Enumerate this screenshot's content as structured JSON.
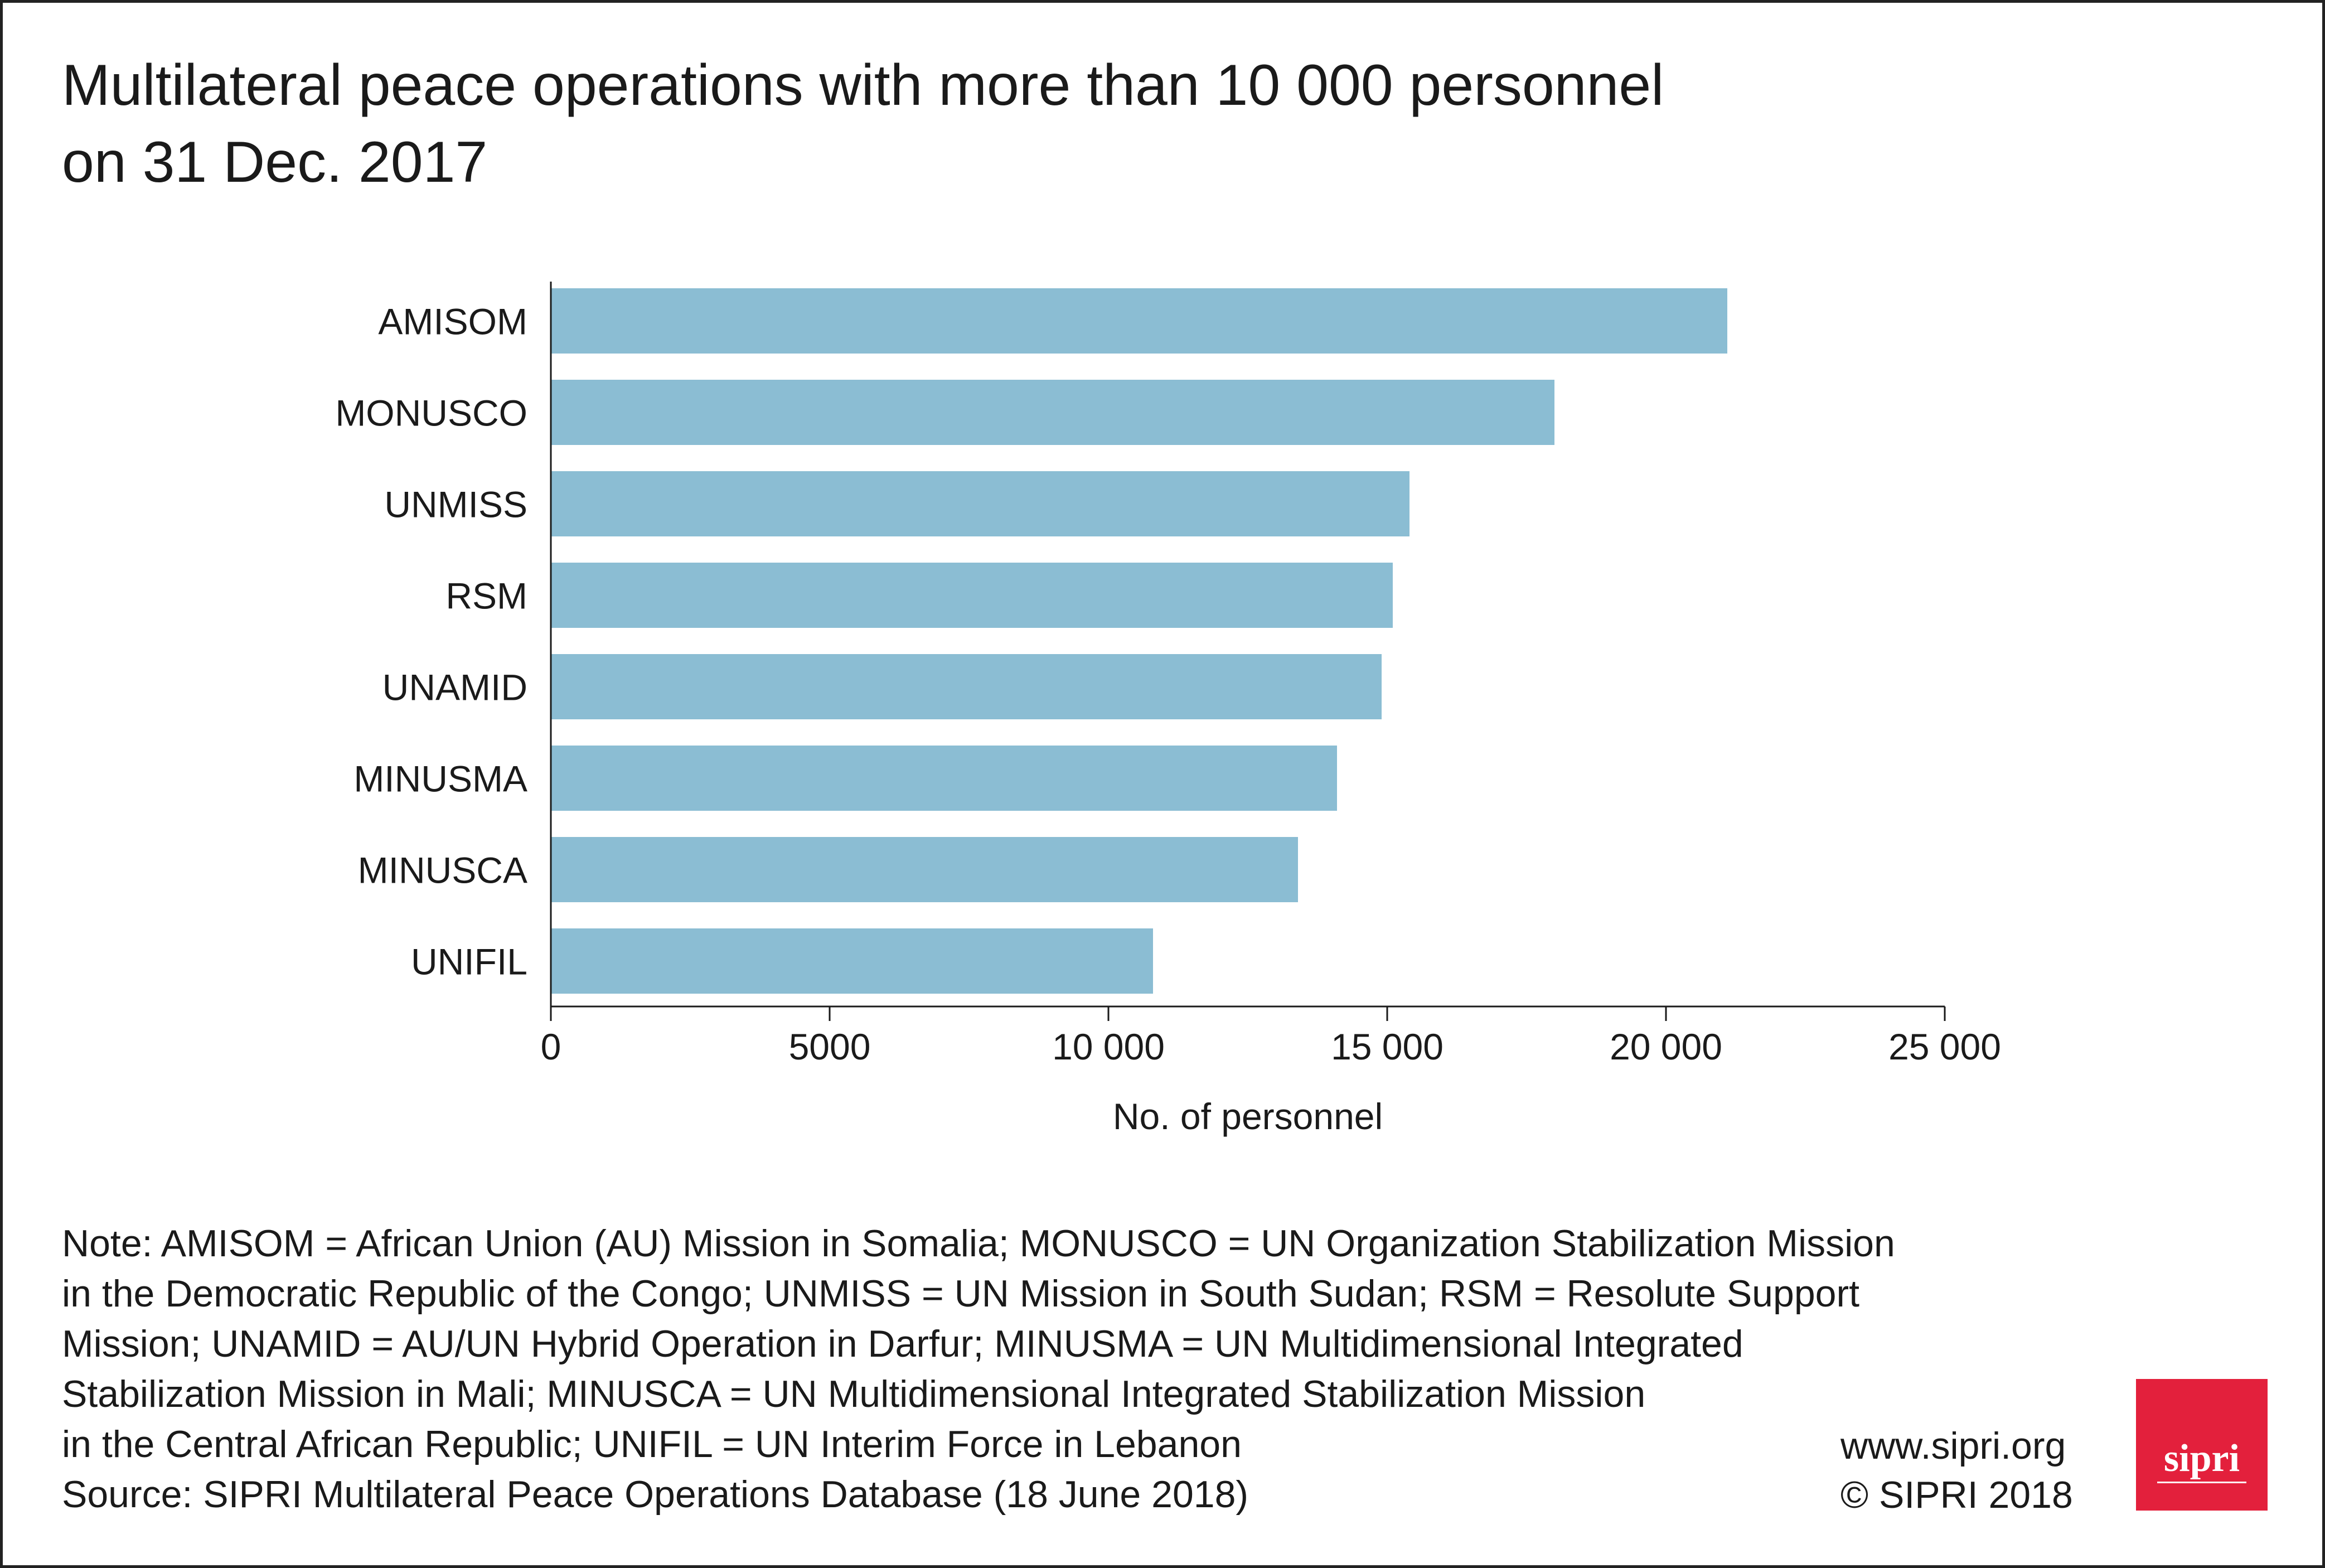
{
  "title_lines": [
    "Multilateral peace operations with more than 10 000 personnel",
    "on 31 Dec. 2017"
  ],
  "chart_data": {
    "type": "bar",
    "orientation": "horizontal",
    "categories": [
      "AMISOM",
      "MONUSCO",
      "UNMISS",
      "RSM",
      "UNAMID",
      "MINUSMA",
      "MINUSCA",
      "UNIFIL"
    ],
    "values": [
      21100,
      18000,
      15400,
      15100,
      14900,
      14100,
      13400,
      10800
    ],
    "xlabel": "No. of personnel",
    "xlim": [
      0,
      25000
    ],
    "xticks": [
      0,
      5000,
      10000,
      15000,
      20000,
      25000
    ],
    "xtick_labels": [
      "0",
      "5000",
      "10 000",
      "15 000",
      "20 000",
      "25 000"
    ],
    "bar_color": "#8bbdd3",
    "grid": false,
    "legend": "none"
  },
  "note_lines": [
    "Note: AMISOM = African Union (AU) Mission in Somalia; MONUSCO = UN Organization Stabilization Mission",
    "in the Democratic Republic of the Congo; UNMISS = UN Mission in South Sudan; RSM = Resolute Support",
    "Mission; UNAMID = AU/UN Hybrid Operation in Darfur; MINUSMA = UN Multidimensional Integrated",
    "Stabilization Mission in Mali; MINUSCA = UN Multidimensional Integrated Stabilization Mission",
    "in the Central African Republic; UNIFIL = UN Interim Force in Lebanon",
    "Source: SIPRI Multilateral Peace Operations Database (18 June 2018)"
  ],
  "footer": {
    "website": "www.sipri.org",
    "copyright": "© SIPRI 2018"
  },
  "logo": {
    "text": "sipri",
    "color": "#e3203c"
  }
}
